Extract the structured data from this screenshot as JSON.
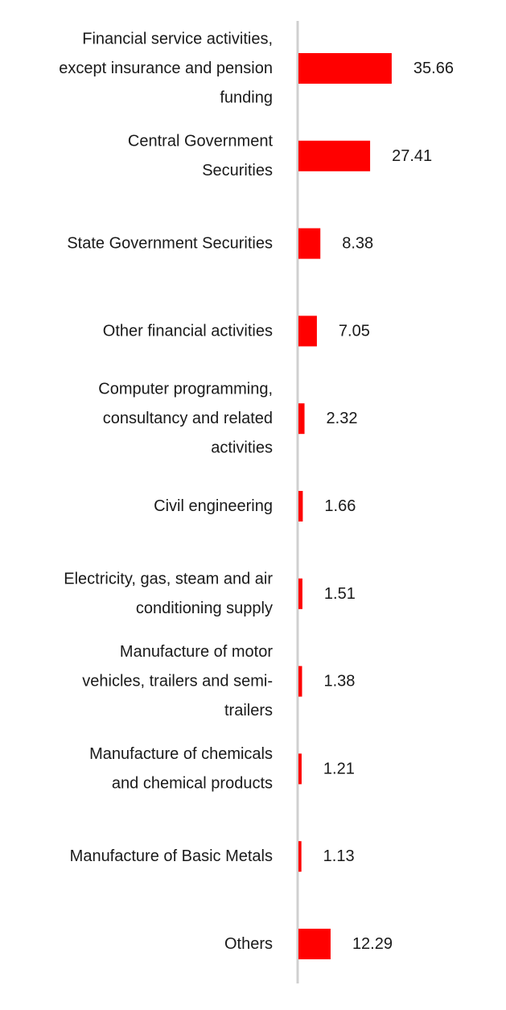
{
  "chart_data": {
    "type": "bar",
    "orientation": "horizontal",
    "categories": [
      [
        "Financial service activities,",
        "except insurance and pension",
        "funding"
      ],
      [
        "Central Government",
        "Securities"
      ],
      [
        "State Government Securities"
      ],
      [
        "Other financial activities"
      ],
      [
        "Computer programming,",
        "consultancy and related",
        "activities"
      ],
      [
        "Civil engineering"
      ],
      [
        "Electricity, gas, steam and air",
        "conditioning supply"
      ],
      [
        "Manufacture of motor",
        "vehicles, trailers and semi-",
        "trailers"
      ],
      [
        "Manufacture of chemicals",
        "and chemical products"
      ],
      [
        "Manufacture of Basic Metals"
      ],
      [
        "Others"
      ]
    ],
    "values": [
      35.66,
      27.41,
      8.38,
      7.05,
      2.32,
      1.66,
      1.51,
      1.38,
      1.21,
      1.13,
      12.29
    ],
    "value_labels": [
      "35.66",
      "27.41",
      "8.38",
      "7.05",
      "2.32",
      "1.66",
      "1.51",
      "1.38",
      "1.21",
      "1.13",
      "12.29"
    ],
    "bar_color": "#ff0000",
    "axis_color": "#d0d0d0",
    "text_color": "#1a1a1a",
    "grid": false,
    "legend": "none"
  }
}
